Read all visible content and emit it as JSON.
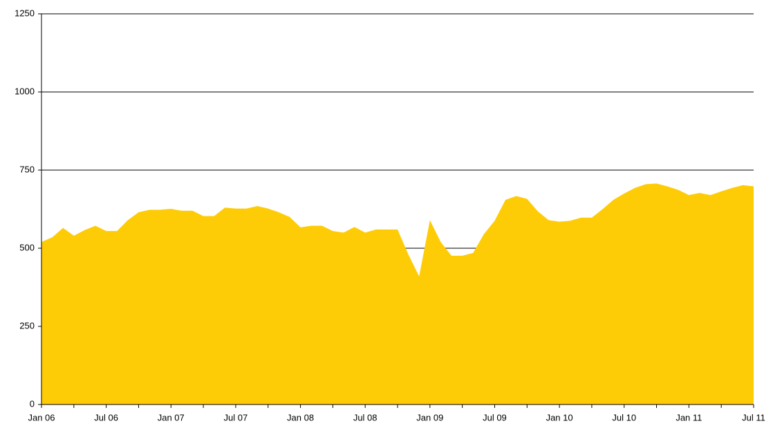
{
  "chart_data": {
    "type": "area",
    "categories": [
      "Jan 06",
      null,
      null,
      null,
      null,
      null,
      "Jul 06",
      null,
      null,
      null,
      null,
      null,
      "Jan 07",
      null,
      null,
      null,
      null,
      null,
      "Jul 07",
      null,
      null,
      null,
      null,
      null,
      "Jan 08",
      null,
      null,
      null,
      null,
      null,
      "Jul 08",
      null,
      null,
      null,
      null,
      null,
      "Jan 09",
      null,
      null,
      null,
      null,
      null,
      "Jul 09",
      null,
      null,
      null,
      null,
      null,
      "Jan 10",
      null,
      null,
      null,
      null,
      null,
      "Jul 10",
      null,
      null,
      null,
      null,
      null,
      "Jan 11",
      null,
      null,
      null,
      null,
      null,
      "Jul 11"
    ],
    "values": [
      520,
      535,
      565,
      540,
      558,
      572,
      555,
      555,
      590,
      615,
      623,
      623,
      626,
      620,
      620,
      603,
      603,
      630,
      627,
      627,
      635,
      627,
      615,
      600,
      567,
      572,
      572,
      555,
      550,
      568,
      550,
      560,
      560,
      560,
      480,
      410,
      590,
      520,
      476,
      476,
      485,
      545,
      588,
      655,
      667,
      658,
      618,
      590,
      585,
      588,
      598,
      598,
      625,
      655,
      675,
      693,
      705,
      707,
      698,
      687,
      670,
      677,
      670,
      682,
      693,
      702,
      698
    ],
    "color": "#fecc07",
    "ylim": [
      0,
      1250
    ],
    "yticks": [
      0,
      250,
      500,
      750,
      1000,
      1250
    ],
    "grid": true
  }
}
